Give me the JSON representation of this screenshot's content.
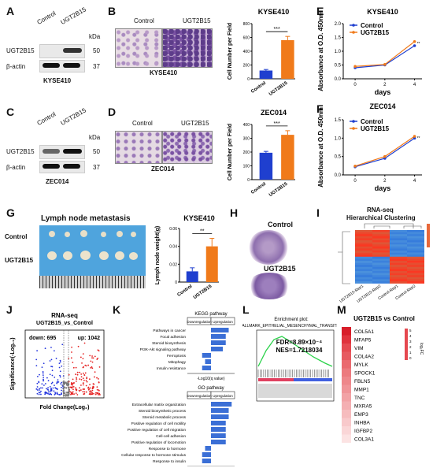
{
  "panels": {
    "A": "A",
    "B": "B",
    "C": "C",
    "D": "D",
    "E": "E",
    "F": "F",
    "G": "G",
    "H": "H",
    "I": "I",
    "J": "J",
    "K": "K",
    "L": "L",
    "M": "M"
  },
  "blotA": {
    "lane1": "Control",
    "lane2": "UGT2B15",
    "kda": "kDa",
    "r1": "UGT2B15",
    "r2": "β-actin",
    "m1": "50",
    "m2": "37",
    "cell": "KYSE410"
  },
  "blotC": {
    "lane1": "Control",
    "lane2": "UGT2B15",
    "kda": "kDa",
    "r1": "UGT2B15",
    "r2": "β-actin",
    "m1": "50",
    "m2": "37",
    "cell": "ZEC014"
  },
  "transB": {
    "c1": "Control",
    "c2": "UGT2B15",
    "cell": "KYSE410"
  },
  "transD": {
    "c1": "Control",
    "c2": "UGT2B15",
    "cell": "ZEC014"
  },
  "lymph": {
    "title": "Lymph node metastasis",
    "row1": "Control",
    "row2": "UGT2B15"
  },
  "he": {
    "l1": "Control",
    "l2": "UGT2B15"
  },
  "cluster": {
    "title1": "RNA-seq",
    "title2": "Hierarchical Clustering",
    "samples": [
      "UGT2B15-Rep1",
      "UGT2B15-Rep2",
      "Control-Rep1",
      "Control-Rep2"
    ]
  },
  "volcano": {
    "title1": "RNA-seq",
    "title2": "UGT2B15_vs_Control",
    "down": "down: 695",
    "up": "up: 1042",
    "xlabel": "Fold Change(Log₂)",
    "ylabel": "Significance(-Log₁₀)"
  },
  "kegg": {
    "title": "KEGG pathway",
    "down": "Downregulation",
    "up": "Upregulation",
    "xlabel": "-Log10(q value)",
    "terms": [
      "Pathways in cancer",
      "Focal adhesion",
      "Steroid biosynthesis",
      "PI3K-Akt signaling pathway",
      "Ferroptosis",
      "Mitophagy",
      "Insulin resistance"
    ]
  },
  "go": {
    "title": "GO pathway",
    "down": "Downregulation",
    "up": "Upregulation",
    "xlabel": "-Log10(q value)",
    "terms": [
      "Extracellular matrix organization",
      "Steroid biosynthetic process",
      "Steroid metabolic process",
      "Positive regulation of cell motility",
      "Positive regulation of cell migration",
      "Cell-cell adhesion",
      "Positive regulation of locomotion",
      "Response to hormone",
      "Cellular response to hormone stimulus",
      "Response to insulin"
    ]
  },
  "gsea": {
    "title1": "Enrichment plot:",
    "title2": "HALLMARK_EPITHELIAL_MESENCHYMAL_TRANSITION",
    "fdr": "FDR=8.89×10⁻⁴",
    "nes": "NES=1.7218034"
  },
  "heatM": {
    "title": "UGT2B15  vs  Control",
    "genes": [
      "COL5A1",
      "MFAP5",
      "VIM",
      "COL4A2",
      "MYLK",
      "SPOCK1",
      "FBLN5",
      "MMP1",
      "TNC",
      "MXRA5",
      "EMP3",
      "INHBA",
      "IGFBP2",
      "COL3A1"
    ],
    "scale_label": "log₂FC",
    "scale_ticks": [
      "5",
      "4",
      "3",
      "2",
      "1",
      "0"
    ]
  },
  "chart_data": [
    {
      "id": "B",
      "type": "bar",
      "title": "KYSE410",
      "ylabel": "Cell Number per Field",
      "categories": [
        "Control",
        "UGT2B15"
      ],
      "values": [
        120,
        560
      ],
      "errors": [
        15,
        55
      ],
      "ylim": [
        0,
        800
      ],
      "yticks": [
        0,
        200,
        400,
        600,
        800
      ],
      "colors": [
        "#1f3fcf",
        "#f07a1a"
      ],
      "sig": "***"
    },
    {
      "id": "D",
      "type": "bar",
      "title": "ZEC014",
      "ylabel": "Cell Number per Field",
      "categories": [
        "Control",
        "UGT2B15"
      ],
      "values": [
        195,
        325
      ],
      "errors": [
        10,
        30
      ],
      "ylim": [
        0,
        400
      ],
      "yticks": [
        0,
        100,
        200,
        300,
        400
      ],
      "colors": [
        "#1f3fcf",
        "#f07a1a"
      ],
      "sig": "***"
    },
    {
      "id": "E",
      "type": "line",
      "title": "KYSE410",
      "ylabel": "Absorbance at O.D. 450nm",
      "xlabel": "days",
      "x": [
        0,
        2,
        4
      ],
      "ylim": [
        0,
        2.0
      ],
      "yticks": [
        0.0,
        0.5,
        1.0,
        1.5,
        2.0
      ],
      "series": [
        {
          "name": "Control",
          "values": [
            0.4,
            0.5,
            1.2
          ],
          "color": "#1f3fcf"
        },
        {
          "name": "UGT2B15",
          "values": [
            0.45,
            0.52,
            1.35
          ],
          "color": "#f07a1a"
        }
      ],
      "sig": "**"
    },
    {
      "id": "F",
      "type": "line",
      "title": "ZEC014",
      "ylabel": "Absorbance at O.D. 450nm",
      "xlabel": "days",
      "x": [
        0,
        2,
        4
      ],
      "ylim": [
        0,
        1.5
      ],
      "yticks": [
        0.0,
        0.5,
        1.0,
        1.5
      ],
      "series": [
        {
          "name": "Control",
          "values": [
            0.22,
            0.45,
            1.0
          ],
          "color": "#1f3fcf"
        },
        {
          "name": "UGT2B15",
          "values": [
            0.24,
            0.5,
            1.05
          ],
          "color": "#f07a1a"
        }
      ],
      "sig": "**"
    },
    {
      "id": "Gbar",
      "type": "bar",
      "title": "KYSE410",
      "ylabel": "Lymph node weight(g)",
      "categories": [
        "Control",
        "UGT2B15"
      ],
      "values": [
        0.012,
        0.04
      ],
      "errors": [
        0.004,
        0.009
      ],
      "ylim": [
        0,
        0.06
      ],
      "yticks": [
        0.0,
        0.02,
        0.04,
        0.06
      ],
      "colors": [
        "#1f3fcf",
        "#f07a1a"
      ],
      "sig": "**"
    },
    {
      "id": "Kkegg",
      "type": "bar",
      "values": [
        6,
        5,
        5,
        4,
        -3,
        -2,
        -3
      ]
    },
    {
      "id": "Kgo",
      "type": "bar",
      "values": [
        7,
        6,
        6,
        5,
        5,
        5,
        5,
        -2,
        -3,
        -3
      ]
    }
  ]
}
